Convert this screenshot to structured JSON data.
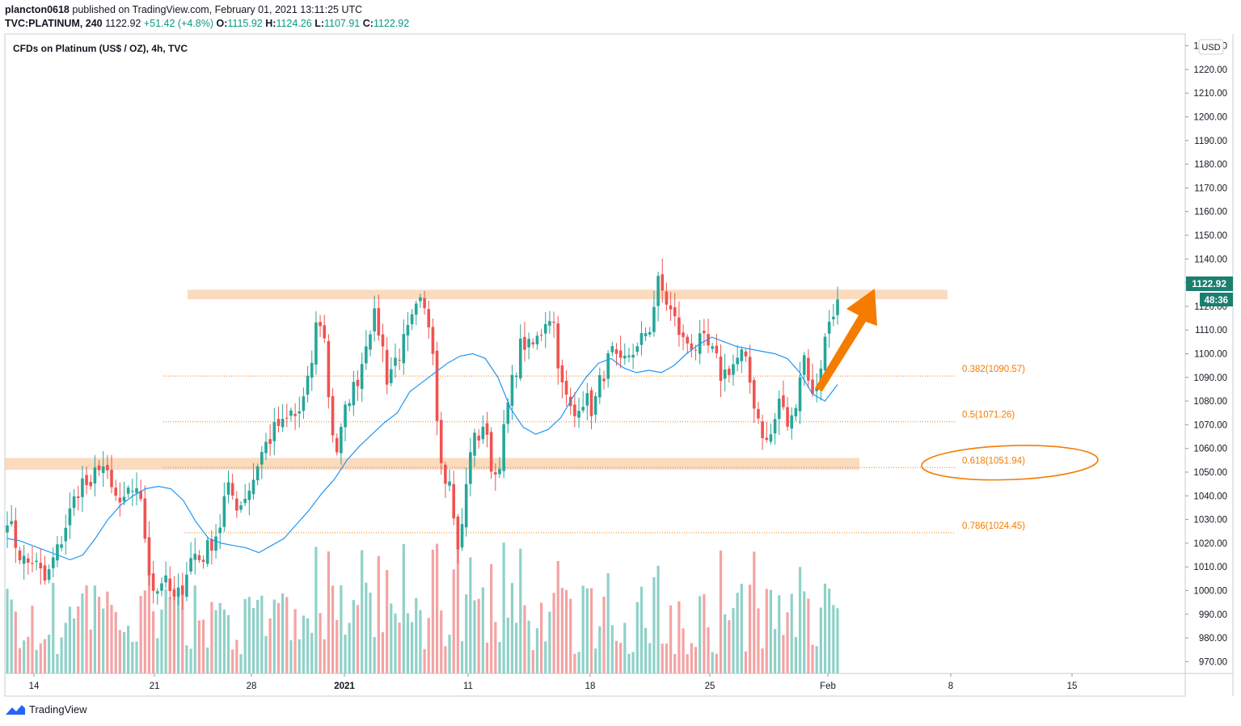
{
  "header": {
    "author": "plancton0618",
    "published_text": "published on TradingView.com, February 01, 2021 13:11:25 UTC",
    "symbol_line": "TVC:PLATINUM, 240",
    "last": "1122.92",
    "change": "+51.42 (+4.8%)",
    "o_label": "O:",
    "o": "1115.92",
    "h_label": "H:",
    "h": "1124.26",
    "l_label": "L:",
    "l": "1107.91",
    "c_label": "C:",
    "c": "1122.92"
  },
  "chart_title": "CFDs on Platinum (US$ / OZ), 4h, TVC",
  "currency_label": "USD",
  "price_badge": "1122.92",
  "countdown_badge": "48:36",
  "brand": "TradingView",
  "colors": {
    "up": "#26a69a",
    "down": "#ef5350",
    "ma": "#2196f3",
    "volume_up": "#8fd1c8",
    "volume_down": "#f4a3a3",
    "zone": "#f9cfa8",
    "fib": "#f57c00",
    "badge": "#1b7f6f"
  },
  "chart_data": {
    "type": "candlestick",
    "title": "CFDs on Platinum (US$ / OZ), 4h, TVC",
    "ylim": [
      965,
      1235
    ],
    "y_ticks": [
      970,
      980,
      990,
      1000,
      1010,
      1020,
      1030,
      1040,
      1050,
      1060,
      1070,
      1080,
      1090,
      1100,
      1110,
      1120,
      1130,
      1140,
      1150,
      1160,
      1170,
      1180,
      1190,
      1200,
      1210,
      1220,
      1230
    ],
    "x_ticks": [
      "14",
      "21",
      "28",
      "2021",
      "11",
      "18",
      "25",
      "Feb",
      "8",
      "15"
    ],
    "resistance_zone": [
      1123,
      1127
    ],
    "support_zone": [
      1051,
      1056
    ],
    "fib_levels": [
      {
        "label": "0.382(1090.57)",
        "value": 1090.57
      },
      {
        "label": "0.5(1071.26)",
        "value": 1071.26
      },
      {
        "label": "0.618(1051.94)",
        "value": 1051.94
      },
      {
        "label": "0.786(1024.45)",
        "value": 1024.45
      }
    ],
    "close_path": [
      1032,
      1022,
      1015,
      1011,
      1013,
      1008,
      1003,
      1012,
      1018,
      1027,
      1035,
      1043,
      1047,
      1040,
      1055,
      1052,
      1043,
      1038,
      1035,
      1041,
      1046,
      1032,
      1010,
      998,
      1005,
      1001,
      995,
      1000,
      1010,
      1016,
      1013,
      1017,
      1022,
      1027,
      1043,
      1040,
      1035,
      1041,
      1045,
      1055,
      1061,
      1065,
      1070,
      1069,
      1075,
      1073,
      1080,
      1090,
      1112,
      1115,
      1080,
      1057,
      1068,
      1082,
      1086,
      1095,
      1110,
      1115,
      1108,
      1090,
      1096,
      1101,
      1107,
      1114,
      1121,
      1116,
      1110,
      1063,
      1050,
      1043,
      1015,
      1035,
      1062,
      1064,
      1071,
      1055,
      1048,
      1064,
      1082,
      1094,
      1106,
      1102,
      1104,
      1110,
      1118,
      1112,
      1087,
      1080,
      1072,
      1082,
      1080,
      1076,
      1087,
      1095,
      1100,
      1093,
      1097,
      1102,
      1101,
      1109,
      1112,
      1130,
      1125,
      1118,
      1112,
      1105,
      1105,
      1103,
      1105,
      1102,
      1098,
      1090,
      1094,
      1096,
      1100,
      1093,
      1080,
      1070,
      1062,
      1068,
      1082,
      1070,
      1072,
      1090,
      1101,
      1080,
      1090,
      1105,
      1118,
      1122
    ],
    "ma_path": [
      1022,
      1021,
      1019,
      1017,
      1015,
      1013,
      1015,
      1022,
      1030,
      1036,
      1040,
      1043,
      1044,
      1043,
      1038,
      1029,
      1022,
      1020,
      1019,
      1018,
      1016,
      1019,
      1022,
      1028,
      1034,
      1041,
      1047,
      1055,
      1061,
      1066,
      1071,
      1075,
      1084,
      1088,
      1092,
      1096,
      1099,
      1100,
      1098,
      1090,
      1077,
      1069,
      1066,
      1068,
      1073,
      1082,
      1090,
      1096,
      1098,
      1094,
      1092,
      1093,
      1092,
      1095,
      1100,
      1104,
      1107,
      1105,
      1103,
      1102,
      1101,
      1100,
      1098,
      1092,
      1083,
      1080,
      1087
    ],
    "volume_ylim": [
      0,
      90
    ]
  }
}
